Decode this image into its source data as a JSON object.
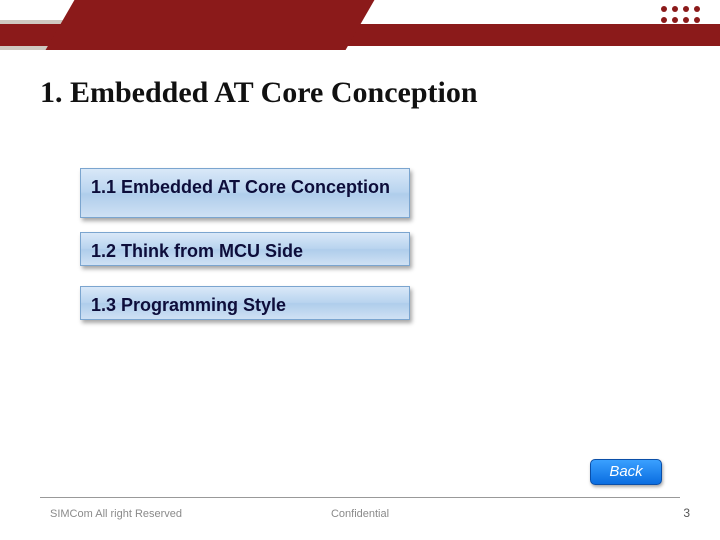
{
  "colors": {
    "brand_red": "#8b1a1a",
    "brand_gray": "#cfc9c1",
    "item_border": "#7ba5cf",
    "item_grad_top": "#d9e8f8",
    "item_grad_bottom": "#cfe1f4",
    "back_grad_top": "#3aa0ff",
    "back_grad_bottom": "#0a6de0",
    "text_dark": "#0d0d3a"
  },
  "title": "1. Embedded AT Core Conception",
  "items": [
    "1.1 Embedded AT Core Conception",
    "1.2 Think from MCU Side",
    "1.3 Programming Style"
  ],
  "back_label": "Back",
  "footer": {
    "left": "SIMCom All right Reserved",
    "center": "Confidential"
  },
  "page_number": "3"
}
